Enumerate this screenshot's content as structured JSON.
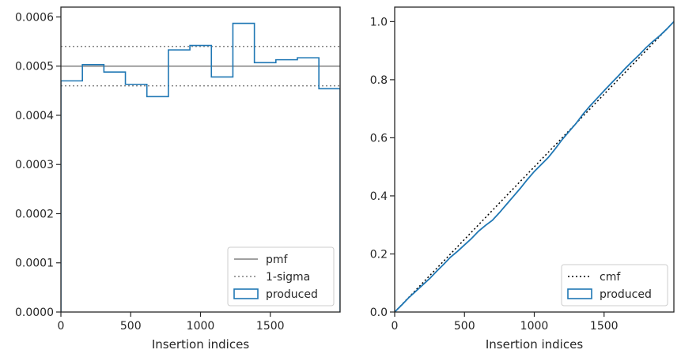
{
  "chart_data": [
    {
      "type": "step-histogram",
      "xlabel": "Insertion indices",
      "ylabel": "",
      "xlim": [
        0,
        2000
      ],
      "ylim": [
        0,
        0.00062
      ],
      "xticks": [
        0,
        500,
        1000,
        1500
      ],
      "yticks": [
        0,
        0.0001,
        0.0002,
        0.0003,
        0.0004,
        0.0005,
        0.0006
      ],
      "ytick_labels": [
        "0.0000",
        "0.0001",
        "0.0002",
        "0.0003",
        "0.0004",
        "0.0005",
        "0.0006"
      ],
      "xtick_labels": [
        "0",
        "500",
        "1000",
        "1500"
      ],
      "bin_edges": [
        0,
        154,
        308,
        462,
        616,
        770,
        924,
        1078,
        1232,
        1386,
        1540,
        1694,
        1848,
        2000
      ],
      "series": [
        {
          "name": "produced",
          "color": "#1f77b4",
          "style": "step",
          "values": [
            0.00047,
            0.000503,
            0.000488,
            0.000463,
            0.000438,
            0.000533,
            0.000542,
            0.000478,
            0.000587,
            0.000507,
            0.000513,
            0.000517,
            0.000454
          ]
        }
      ],
      "reference_lines": [
        {
          "name": "pmf",
          "color": "#808080",
          "style": "solid",
          "y": 0.0005
        },
        {
          "name": "1-sigma",
          "color": "#808080",
          "style": "dotted",
          "y": [
            0.00046,
            0.00054
          ]
        }
      ],
      "legend": {
        "placement": "lower-right",
        "entries": [
          "pmf",
          "1-sigma",
          "produced"
        ]
      }
    },
    {
      "type": "line",
      "xlabel": "Insertion indices",
      "ylabel": "",
      "xlim": [
        0,
        2000
      ],
      "ylim": [
        0,
        1.05
      ],
      "xticks": [
        0,
        500,
        1000,
        1500
      ],
      "yticks": [
        0,
        0.2,
        0.4,
        0.6,
        0.8,
        1.0
      ],
      "ytick_labels": [
        "0.0",
        "0.2",
        "0.4",
        "0.6",
        "0.8",
        "1.0"
      ],
      "xtick_labels": [
        "0",
        "500",
        "1000",
        "1500"
      ],
      "series": [
        {
          "name": "cmf",
          "color": "#000000",
          "style": "dotted",
          "x": [
            0,
            2000
          ],
          "y": [
            0,
            1.0
          ]
        },
        {
          "name": "produced",
          "color": "#1f77b4",
          "style": "solid",
          "x": [
            0,
            50,
            100,
            150,
            200,
            250,
            300,
            350,
            400,
            450,
            500,
            550,
            600,
            650,
            700,
            750,
            800,
            850,
            900,
            950,
            1000,
            1050,
            1100,
            1150,
            1200,
            1250,
            1300,
            1350,
            1400,
            1450,
            1500,
            1550,
            1600,
            1650,
            1700,
            1750,
            1800,
            1850,
            1900,
            1950,
            2000
          ],
          "y": [
            0,
            0.024,
            0.049,
            0.071,
            0.093,
            0.115,
            0.14,
            0.164,
            0.189,
            0.209,
            0.231,
            0.253,
            0.278,
            0.298,
            0.316,
            0.342,
            0.37,
            0.398,
            0.426,
            0.456,
            0.484,
            0.508,
            0.532,
            0.562,
            0.594,
            0.622,
            0.65,
            0.682,
            0.71,
            0.736,
            0.762,
            0.787,
            0.812,
            0.838,
            0.862,
            0.885,
            0.91,
            0.932,
            0.952,
            0.975,
            1.0
          ]
        }
      ],
      "legend": {
        "placement": "lower-right",
        "entries": [
          "cmf",
          "produced"
        ]
      }
    }
  ]
}
